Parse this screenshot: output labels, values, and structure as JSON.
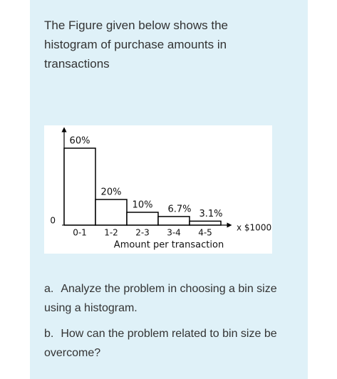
{
  "intro": "The Figure given below shows the histogram of purchase amounts in transactions",
  "chart_data": {
    "type": "histogram",
    "categories": [
      "0-1",
      "1-2",
      "2-3",
      "3-4",
      "4-5"
    ],
    "values": [
      60,
      20,
      10,
      6.7,
      3.1
    ],
    "value_labels": [
      "60%",
      "20%",
      "10%",
      "6.7%",
      "3.1%"
    ],
    "ylim": [
      0,
      65
    ],
    "yticks": [
      0
    ],
    "xlabel": "Amount per transaction",
    "x_unit": "x $1000",
    "color": "#ffffff",
    "edge_color": "#000000"
  },
  "questions": [
    {
      "label": "a.",
      "text": "Analyze the problem in choosing a bin size using a histogram."
    },
    {
      "label": "b.",
      "text": "How can the problem related to bin size be overcome?"
    }
  ]
}
